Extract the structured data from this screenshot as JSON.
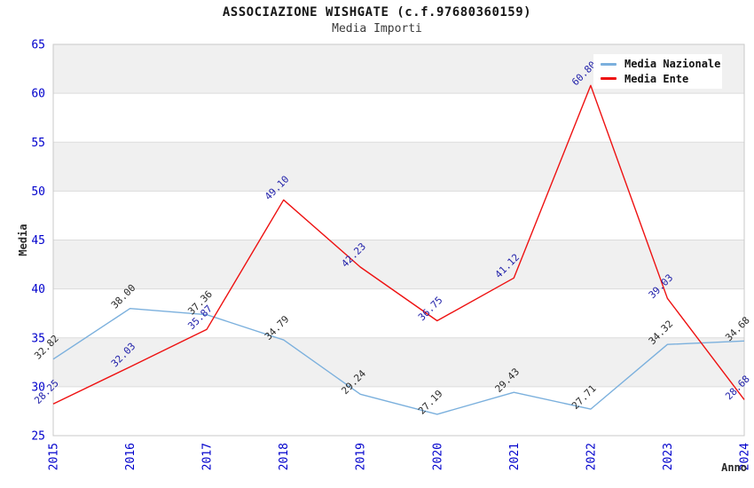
{
  "chart_data": {
    "type": "line",
    "title": "ASSOCIAZIONE WISHGATE (c.f.97680360159)",
    "subtitle": "Media Importi",
    "xlabel": "Anno",
    "ylabel": "Media",
    "ylim": [
      25,
      65
    ],
    "ytick_step": 5,
    "grid": true,
    "legend_position": "top-right",
    "categories": [
      "2015",
      "2016",
      "2017",
      "2018",
      "2019",
      "2020",
      "2021",
      "2022",
      "2023",
      "2024"
    ],
    "series": [
      {
        "name": "Media Nazionale",
        "color": "#7bb0dd",
        "label_color": "#2b2b2b",
        "values": [
          32.82,
          38.0,
          37.36,
          34.79,
          29.24,
          27.19,
          29.43,
          27.71,
          34.32,
          34.68
        ]
      },
      {
        "name": "Media Ente",
        "color": "#ee1111",
        "label_color": "#2222aa",
        "values": [
          28.25,
          32.03,
          35.87,
          49.1,
          42.23,
          36.75,
          41.12,
          60.8,
          39.03,
          28.68
        ]
      }
    ],
    "colors": {
      "tick_label": "#0000cc",
      "axis_title": "#2b2b2b",
      "band": "#f0f0f0",
      "gridline": "#dcdcdc",
      "plot_border": "#c9c9c9",
      "background": "#ffffff"
    }
  }
}
